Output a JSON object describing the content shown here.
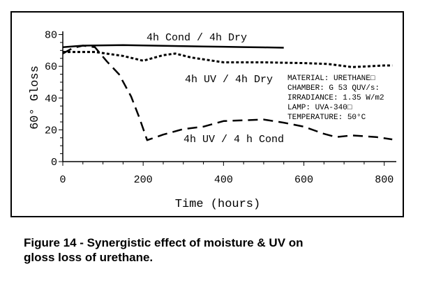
{
  "chart_data": {
    "type": "line",
    "title": "",
    "xlabel": "Time (hours)",
    "ylabel": "60° Gloss",
    "xlim": [
      0,
      830
    ],
    "ylim": [
      0,
      82
    ],
    "xticks": [
      "0",
      "200",
      "400",
      "600",
      "800"
    ],
    "xtick_values": [
      0,
      200,
      400,
      600,
      800
    ],
    "yticks": [
      "0",
      "20",
      "40",
      "60",
      "80"
    ],
    "ytick_values": [
      0,
      20,
      40,
      60,
      80
    ],
    "series": [
      {
        "name": "4h Cond / 4h Dry",
        "style": "solid",
        "x": [
          0,
          50,
          100,
          150,
          200,
          250,
          300,
          350,
          400,
          450,
          500,
          550
        ],
        "y": [
          72,
          73,
          73.2,
          73.3,
          73.1,
          72.9,
          72.7,
          72.5,
          72.3,
          72.1,
          71.9,
          71.7
        ]
      },
      {
        "name": "4h UV / 4h Dry",
        "style": "dotted",
        "x": [
          0,
          80,
          150,
          200,
          250,
          280,
          320,
          400,
          500,
          600,
          660,
          720,
          760,
          800,
          820
        ],
        "y": [
          69,
          69,
          66.5,
          63.5,
          67,
          68,
          65.5,
          62.5,
          62.5,
          62,
          61.5,
          59.5,
          60,
          60.5,
          60.5
        ]
      },
      {
        "name": "4h UV / 4 h Cond",
        "style": "dashed",
        "x": [
          0,
          25,
          50,
          80,
          110,
          140,
          170,
          190,
          210,
          250,
          300,
          350,
          400,
          450,
          500,
          550,
          600,
          650,
          680,
          720,
          780,
          820
        ],
        "y": [
          68,
          71.5,
          73,
          72,
          63,
          55,
          41,
          28,
          13.5,
          17,
          20.5,
          22,
          25.5,
          26,
          26.5,
          24.5,
          22,
          17.5,
          15.5,
          16.5,
          15.5,
          14
        ]
      }
    ],
    "annotations": [
      "MATERIAL:  URETHANE□",
      "CHAMBER:  G 53  QUV/s:",
      "IRRADIANCE: 1.35 W/m2",
      "LAMP: UVA-340□",
      "TEMPERATURE:  50°C"
    ]
  },
  "caption": {
    "line1": "Figure 14 -  Synergistic effect of moisture & UV on",
    "line2": "gloss loss of urethane."
  }
}
